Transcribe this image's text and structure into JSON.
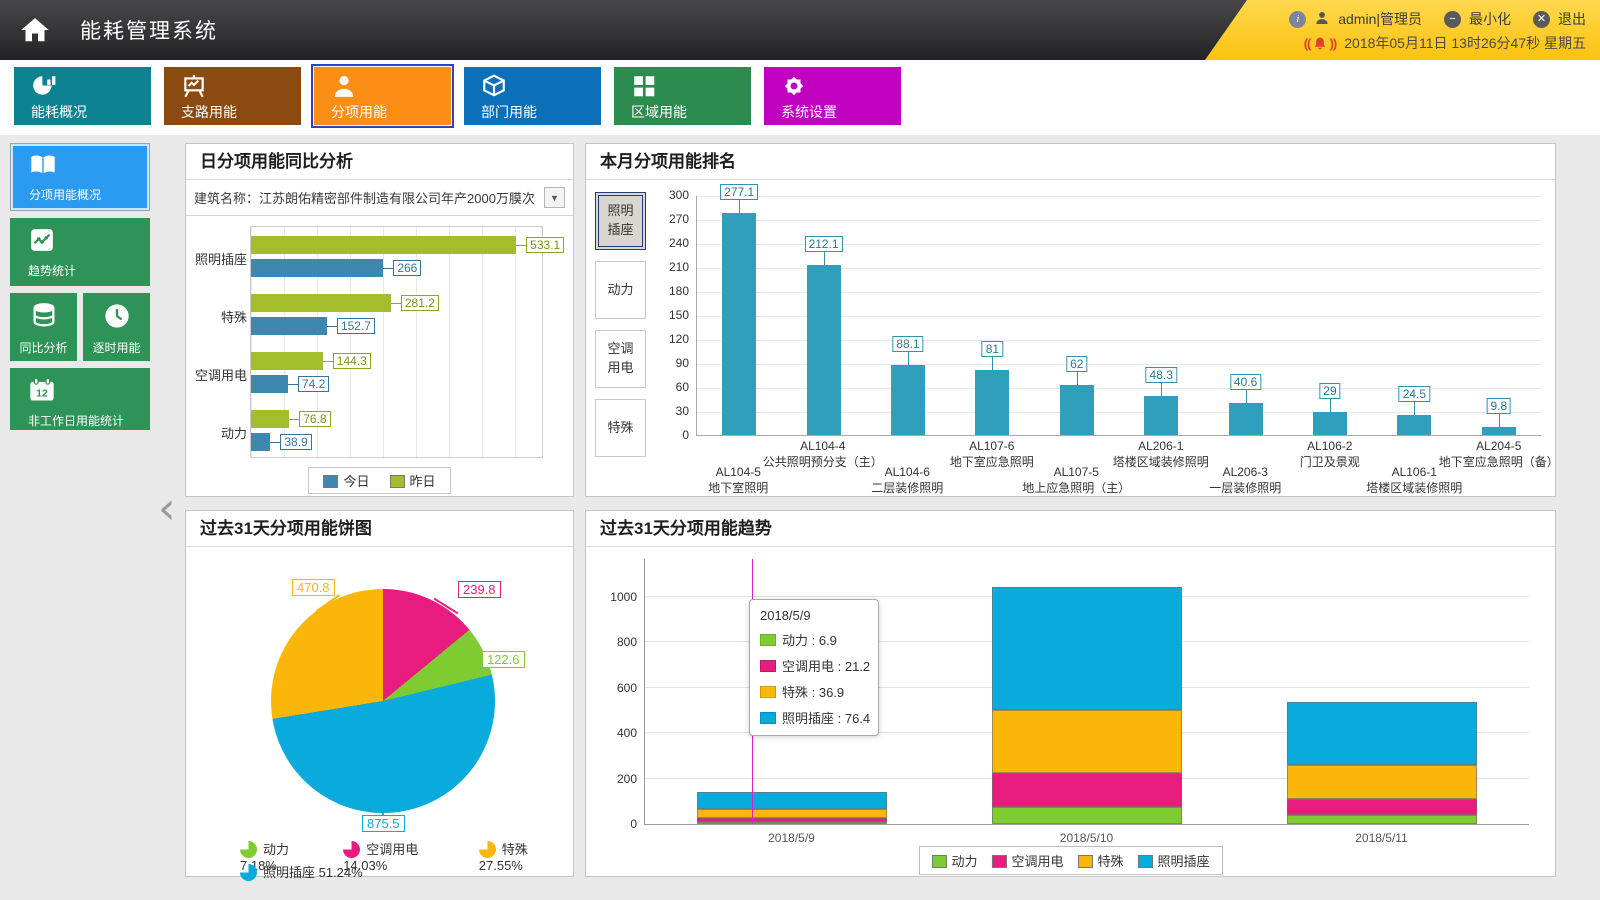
{
  "header": {
    "title": "能耗管理系统",
    "user": "admin|管理员",
    "minimize_label": "最小化",
    "logout_label": "退出",
    "datetime": "2018年05月11日 13时26分47秒 星期五"
  },
  "nav": {
    "selected_index": 2,
    "items": [
      {
        "label": "能耗概况",
        "color": "#0d8391",
        "icon": "pie-bar-icon"
      },
      {
        "label": "支路用能",
        "color": "#8a4a10",
        "icon": "easel-chart-icon"
      },
      {
        "label": "分项用能",
        "color": "#fb8e14",
        "icon": "person-icon"
      },
      {
        "label": "部门用能",
        "color": "#0c70b8",
        "icon": "cube-icon"
      },
      {
        "label": "区域用能",
        "color": "#2e8b50",
        "icon": "grid-icon"
      },
      {
        "label": "系统设置",
        "color": "#c001c0",
        "icon": "gear-icon"
      }
    ]
  },
  "sidebar": {
    "selected_index": 0,
    "items": [
      {
        "label": "分项用能概况",
        "icon": "book-icon"
      },
      {
        "label": "趋势统计",
        "icon": "trend-icon"
      },
      {
        "label": "同比分析",
        "icon": "database-icon"
      },
      {
        "label": "逐时用能",
        "icon": "clock-icon"
      },
      {
        "label": "非工作日用能统计",
        "icon": "calendar-icon"
      }
    ]
  },
  "panels": {
    "daily": {
      "title": "日分项用能同比分析",
      "building_label": "建筑名称：",
      "building_value": "江苏朗佑精密部件制造有限公司年产2000万膜次"
    },
    "rank": {
      "title": "本月分项用能排名",
      "tabs": [
        "照明\n插座",
        "动力",
        "空调\n用电",
        "特殊"
      ],
      "selected_tab": 0
    },
    "pie": {
      "title": "过去31天分项用能饼图"
    },
    "trend": {
      "title": "过去31天分项用能趋势"
    }
  },
  "chart_data": [
    {
      "id": "daily_compare",
      "type": "bar",
      "orientation": "horizontal",
      "categories": [
        "照明插座",
        "特殊",
        "空调用电",
        "动力"
      ],
      "series": [
        {
          "name": "今日",
          "color": "#3e87ae",
          "border": "#35759a",
          "text": "#35759a",
          "values": [
            266,
            152.7,
            74.2,
            38.9
          ]
        },
        {
          "name": "昨日",
          "color": "#a4bd2a",
          "border": "#8fa51e",
          "text": "#7f930f",
          "values": [
            533.1,
            281.2,
            144.3,
            76.8
          ]
        }
      ],
      "xlim": [
        0,
        585
      ],
      "legend": [
        "今日",
        "昨日"
      ]
    },
    {
      "id": "monthly_rank",
      "type": "bar",
      "bar_color": "#2f9fbc",
      "ylim": [
        0,
        300
      ],
      "ytick_step": 30,
      "items": [
        {
          "code": "AL104-5",
          "name": "地下室照明",
          "value": 277.1
        },
        {
          "code": "AL104-4",
          "name": "公共照明预分支（主）",
          "value": 212.1
        },
        {
          "code": "AL104-6",
          "name": "二层装修照明",
          "value": 88.1
        },
        {
          "code": "AL107-6",
          "name": "地下室应急照明",
          "value": 81
        },
        {
          "code": "AL107-5",
          "name": "地上应急照明（主）",
          "value": 62
        },
        {
          "code": "AL206-1",
          "name": "塔楼区域装修照明",
          "value": 48.3
        },
        {
          "code": "AL206-3",
          "name": "一层装修照明",
          "value": 40.6
        },
        {
          "code": "AL106-2",
          "name": "门卫及景观",
          "value": 29
        },
        {
          "code": "AL106-1",
          "name": "塔楼区域装修照明",
          "value": 24.5
        },
        {
          "code": "AL204-5",
          "name": "地下室应急照明（备）",
          "value": 9.8
        }
      ]
    },
    {
      "id": "pie31",
      "type": "pie",
      "slices": [
        {
          "name": "空调用电",
          "value": 239.8,
          "pct": 14.03,
          "pct_label": "14.03%",
          "color": "#e81c7e"
        },
        {
          "name": "动力",
          "value": 122.6,
          "pct": 7.18,
          "pct_label": "7.18%",
          "color": "#7ecb32"
        },
        {
          "name": "照明插座",
          "value": 875.5,
          "pct": 51.24,
          "pct_label": "51.24%",
          "color": "#09abdc"
        },
        {
          "name": "特殊",
          "value": 470.8,
          "pct": 27.55,
          "pct_label": "27.55%",
          "color": "#fbb60a"
        }
      ],
      "legend_order": [
        "动力",
        "空调用电",
        "特殊",
        "照明插座"
      ]
    },
    {
      "id": "trend31",
      "type": "stacked-bar",
      "categories": [
        "2018/5/9",
        "2018/5/10",
        "2018/5/11"
      ],
      "series": [
        {
          "name": "动力",
          "color": "#7ecb32",
          "values": [
            6.9,
            73,
            39
          ]
        },
        {
          "name": "空调用电",
          "color": "#e81c7e",
          "values": [
            21.2,
            151,
            73
          ]
        },
        {
          "name": "特殊",
          "color": "#fbb60a",
          "values": [
            36.9,
            279,
            146
          ]
        },
        {
          "name": "照明插座",
          "color": "#09abdc",
          "values": [
            76.4,
            538,
            279
          ]
        }
      ],
      "ylim": [
        0,
        1170
      ],
      "yticks": [
        0,
        200,
        400,
        600,
        800,
        1000
      ],
      "highlight_index": 0,
      "tooltip": {
        "title": "2018/5/9",
        "rows": [
          {
            "name": "动力",
            "value": "6.9"
          },
          {
            "name": "空调用电",
            "value": "21.2"
          },
          {
            "name": "特殊",
            "value": "36.9"
          },
          {
            "name": "照明插座",
            "value": "76.4"
          }
        ]
      }
    }
  ]
}
